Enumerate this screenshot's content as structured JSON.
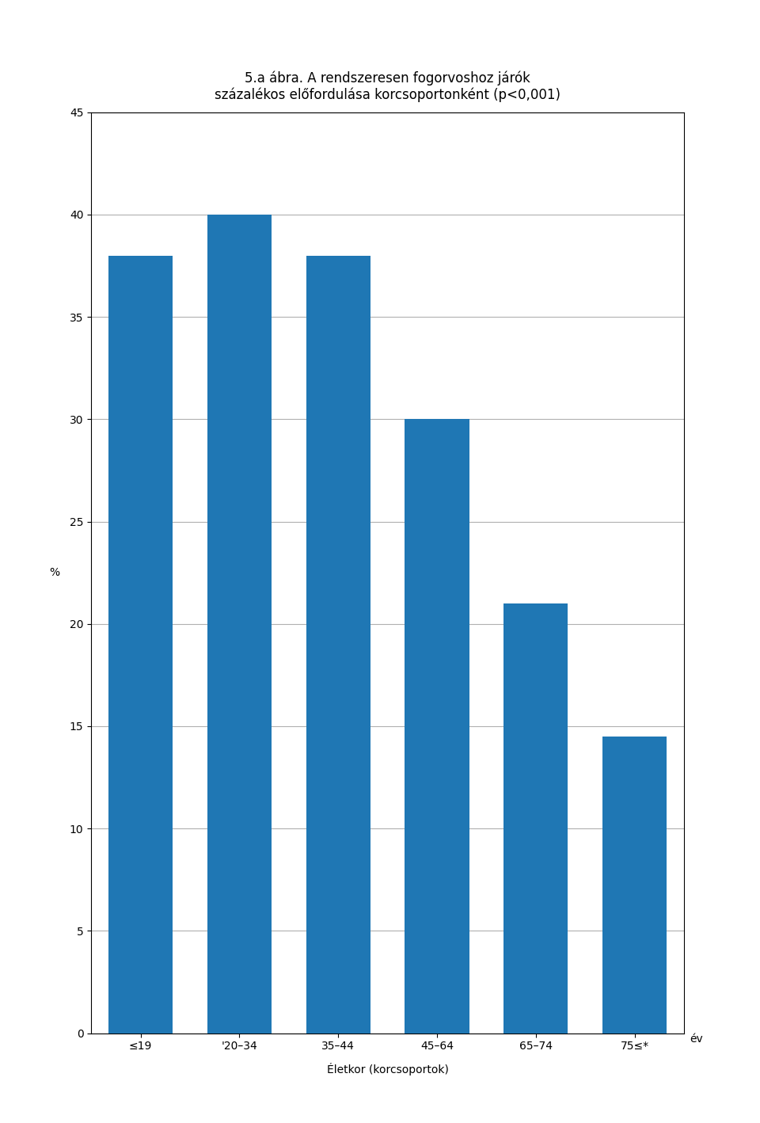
{
  "chart_data": {
    "type": "bar",
    "title": "5.a ábra. A rendszeresen fogorvoshoz járók\nszázalékos előfordulása korcsoportonként (p<0,001)",
    "categories": [
      "≤19",
      "'20–34",
      "35–44",
      "45–64",
      "65–74",
      "75≤*"
    ],
    "values": [
      38,
      40,
      38,
      30,
      21,
      14.5
    ],
    "xlabel": "Életkor (korcsoportok)",
    "ylabel": "%",
    "annotations": [
      "év"
    ],
    "ylim": [
      0,
      45
    ],
    "yticks": [
      0,
      5,
      10,
      15,
      20,
      25,
      30,
      35,
      40,
      45
    ],
    "grid": true
  }
}
